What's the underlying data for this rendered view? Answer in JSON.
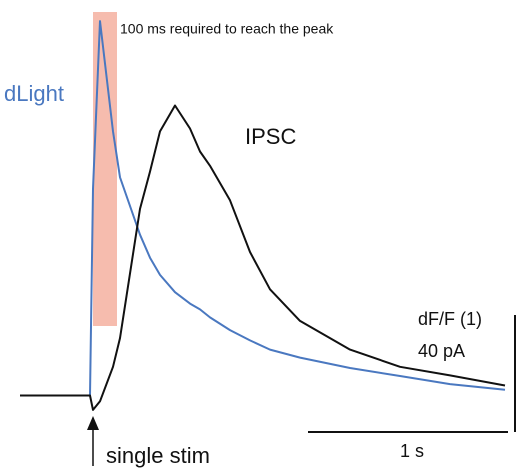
{
  "chart_data": {
    "type": "line",
    "annotation": "100 ms required to reach the peak",
    "highlight": {
      "x": [
        0,
        0.12
      ],
      "color": "#f4b0a0"
    },
    "x": [
      -0.365,
      -0.165,
      -0.015,
      0,
      0.035,
      0.1,
      0.135,
      0.235,
      0.285,
      0.335,
      0.41,
      0.485,
      0.535,
      0.585,
      0.685,
      0.785,
      0.885,
      1.035,
      1.285,
      1.535,
      1.785,
      2.06
    ],
    "xlim": [
      -0.465,
      2.125
    ],
    "ylim": [
      -0.3,
      3.4
    ],
    "y2lim": [
      -12,
      136
    ],
    "series": [
      {
        "name": "dLight",
        "color": "#4a78c0",
        "values": [
          0,
          0,
          0,
          1.8,
          3.26,
          2.3,
          1.9,
          1.4,
          1.2,
          1.05,
          0.9,
          0.8,
          0.75,
          0.68,
          0.57,
          0.48,
          0.4,
          0.33,
          0.24,
          0.17,
          0.1,
          0.05
        ]
      },
      {
        "name": "IPSC",
        "color": "#111111",
        "axis": "y2",
        "values": [
          0,
          0,
          0,
          -5,
          -2,
          10,
          20,
          65,
          78,
          92,
          101,
          93,
          85,
          80,
          68,
          50,
          37,
          26,
          16,
          10,
          7,
          3.5
        ]
      }
    ],
    "scale_bar_y": [
      "dF/F (1)",
      "40 pA"
    ],
    "scale_bar_x": "1 s",
    "stimulus": "single stim"
  }
}
